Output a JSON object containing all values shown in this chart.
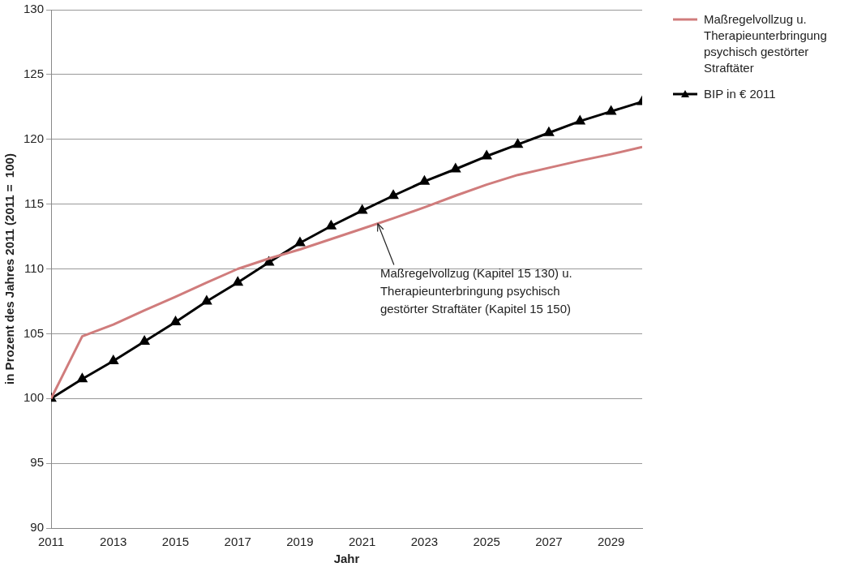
{
  "chart_data": {
    "type": "line",
    "xlabel": "Jahr",
    "ylabel": "in Prozent des Jahres 2011 (2011 =  100)",
    "x": [
      2011,
      2012,
      2013,
      2014,
      2015,
      2016,
      2017,
      2018,
      2019,
      2020,
      2021,
      2022,
      2023,
      2024,
      2025,
      2026,
      2027,
      2028,
      2029,
      2030
    ],
    "series": [
      {
        "name": "Maßregelvollzug u. Therapieunterbringung psychisch gestörter Straftäter",
        "color": "#d07c7c",
        "marker": "none",
        "values": [
          100,
          104.8,
          105.7,
          106.8,
          107.85,
          108.95,
          110.0,
          110.8,
          111.5,
          112.3,
          113.1,
          113.9,
          114.75,
          115.65,
          116.5,
          117.25,
          117.8,
          118.35,
          118.85,
          119.4
        ]
      },
      {
        "name": "BIP in € 2011",
        "color": "#000000",
        "marker": "triangle",
        "values": [
          100,
          101.5,
          102.9,
          104.4,
          105.9,
          107.5,
          108.95,
          110.5,
          112.0,
          113.3,
          114.5,
          115.65,
          116.75,
          117.7,
          118.7,
          119.6,
          120.5,
          121.4,
          122.15,
          122.9
        ]
      }
    ],
    "xlim": [
      2011,
      2030
    ],
    "xticks": [
      2011,
      2013,
      2015,
      2017,
      2019,
      2021,
      2023,
      2025,
      2027,
      2029
    ],
    "ylim": [
      90,
      130
    ],
    "yticks": [
      90,
      95,
      100,
      105,
      110,
      115,
      120,
      125,
      130
    ],
    "grid": "y",
    "legend": "right",
    "line_style": "solid",
    "annotations": [
      {
        "text": "Maßregelvollzug (Kapitel 15 130) u.\nTherapieunterbringung psychisch\ngestörter Straftäter (Kapitel 15 150)",
        "x": 2021.5,
        "y": 113.5
      }
    ]
  }
}
